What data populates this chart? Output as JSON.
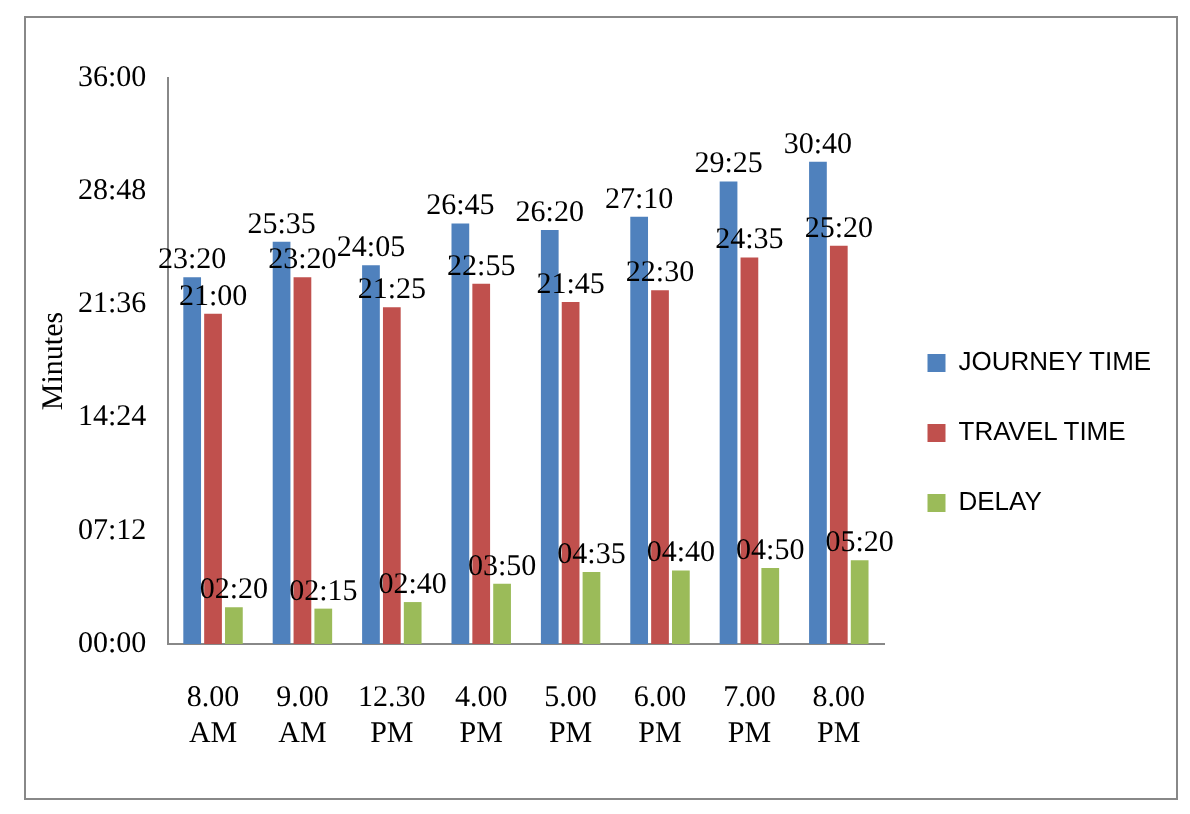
{
  "chart_data": {
    "type": "bar",
    "ylabel": "Minutes",
    "categories": [
      "8.00 AM",
      "9.00 AM",
      "12.30 PM",
      "4.00 PM",
      "5.00 PM",
      "6.00 PM",
      "7.00 PM",
      "8.00 PM"
    ],
    "series": [
      {
        "name": "JOURNEY TIME",
        "color": "#4f81bd",
        "values": [
          23.333,
          25.583,
          24.083,
          26.75,
          26.333,
          27.167,
          29.417,
          30.667
        ],
        "value_labels": [
          "23:20",
          "25:35",
          "24:05",
          "26:45",
          "26:20",
          "27:10",
          "29:25",
          "30:40"
        ]
      },
      {
        "name": "TRAVEL TIME",
        "color": "#c0504d",
        "values": [
          21,
          23.333,
          21.417,
          22.917,
          21.75,
          22.5,
          24.583,
          25.333
        ],
        "value_labels": [
          "21:00",
          "23:20",
          "21:25",
          "22:55",
          "21:45",
          "22:30",
          "24:35",
          "25:20"
        ]
      },
      {
        "name": "DELAY",
        "color": "#9bbb59",
        "values": [
          2.333,
          2.25,
          2.667,
          3.833,
          4.583,
          4.667,
          4.833,
          5.333
        ],
        "value_labels": [
          "02:20",
          "02:15",
          "02:40",
          "03:50",
          "04:35",
          "04:40",
          "04:50",
          "05:20"
        ]
      }
    ],
    "ylim": [
      0,
      36
    ],
    "yticks": [
      {
        "value": 0,
        "label": "00:00"
      },
      {
        "value": 7.2,
        "label": "07:12"
      },
      {
        "value": 14.4,
        "label": "14:24"
      },
      {
        "value": 21.6,
        "label": "21:36"
      },
      {
        "value": 28.8,
        "label": "28:48"
      },
      {
        "value": 36,
        "label": "36:00"
      }
    ],
    "grid": false,
    "legend": "right"
  }
}
